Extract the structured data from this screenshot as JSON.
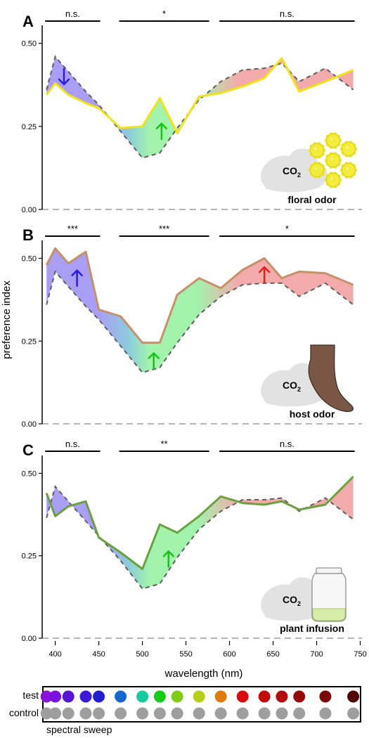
{
  "figure": {
    "x_axis_label": "wavelength (nm)",
    "y_axis_label": "preference index",
    "row_test_label": "test",
    "row_control_label": "control",
    "sweep_label": "spectral sweep",
    "co2_label": "CO",
    "co2_sub": "2"
  },
  "chart_data": [
    {
      "type": "line",
      "panel_letter": "A",
      "odor_label": "floral odor",
      "icon": "flower-cluster-icon",
      "x": [
        390,
        400,
        415,
        435,
        450,
        475,
        500,
        520,
        540,
        565,
        590,
        615,
        640,
        660,
        680,
        710,
        742
      ],
      "xlim": [
        385,
        752
      ],
      "ylim": [
        0,
        0.55
      ],
      "yticks": [
        0,
        0.25,
        0.5
      ],
      "ytick_labels": [
        "0.00",
        "0.25",
        "0.50"
      ],
      "xticks": [
        400,
        450,
        500,
        550,
        600,
        650,
        700,
        750
      ],
      "series": [
        {
          "role": "test",
          "color": "#f2e21b",
          "values": [
            0.345,
            0.38,
            0.345,
            0.32,
            0.305,
            0.245,
            0.25,
            0.335,
            0.23,
            0.34,
            0.35,
            0.37,
            0.395,
            0.455,
            0.355,
            0.385,
            0.42
          ]
        },
        {
          "role": "control",
          "style": "dashed",
          "color": "#5e5e5e",
          "values": [
            0.36,
            0.46,
            0.415,
            0.355,
            0.315,
            0.235,
            0.155,
            0.17,
            0.245,
            0.33,
            0.385,
            0.42,
            0.425,
            0.44,
            0.385,
            0.425,
            0.36
          ]
        }
      ],
      "significance": [
        {
          "range": [
            390,
            450
          ],
          "label": "n.s."
        },
        {
          "range": [
            475,
            575
          ],
          "label": "*"
        },
        {
          "range": [
            590,
            742
          ],
          "label": "n.s."
        }
      ],
      "arrows": [
        {
          "x": 410,
          "y": 0.4,
          "direction": "down",
          "color": "#2b1ed6"
        },
        {
          "x": 522,
          "y": 0.235,
          "direction": "up",
          "color": "#19c319"
        }
      ]
    },
    {
      "type": "line",
      "panel_letter": "B",
      "odor_label": "host odor",
      "icon": "foot-icon",
      "x": [
        390,
        400,
        415,
        435,
        450,
        475,
        500,
        520,
        540,
        565,
        590,
        615,
        640,
        660,
        680,
        710,
        742
      ],
      "xlim": [
        385,
        752
      ],
      "ylim": [
        0,
        0.55
      ],
      "yticks": [
        0,
        0.25,
        0.5
      ],
      "ytick_labels": [
        "0.00",
        "0.25",
        "0.50"
      ],
      "xticks": [
        400,
        450,
        500,
        550,
        600,
        650,
        700,
        750
      ],
      "series": [
        {
          "role": "test",
          "color": "#c4916b",
          "values": [
            0.48,
            0.53,
            0.485,
            0.52,
            0.345,
            0.325,
            0.245,
            0.245,
            0.39,
            0.44,
            0.41,
            0.465,
            0.5,
            0.44,
            0.46,
            0.455,
            0.42
          ]
        },
        {
          "role": "control",
          "style": "dashed",
          "color": "#5e5e5e",
          "values": [
            0.36,
            0.46,
            0.415,
            0.355,
            0.315,
            0.235,
            0.155,
            0.17,
            0.245,
            0.33,
            0.385,
            0.42,
            0.425,
            0.425,
            0.385,
            0.425,
            0.36
          ]
        }
      ],
      "significance": [
        {
          "range": [
            390,
            450
          ],
          "label": "***"
        },
        {
          "range": [
            475,
            575
          ],
          "label": "***"
        },
        {
          "range": [
            590,
            742
          ],
          "label": "*"
        }
      ],
      "arrows": [
        {
          "x": 425,
          "y": 0.44,
          "direction": "up",
          "color": "#2b1ed6"
        },
        {
          "x": 513,
          "y": 0.19,
          "direction": "up",
          "color": "#19c319"
        },
        {
          "x": 640,
          "y": 0.45,
          "direction": "up",
          "color": "#e11f1f"
        }
      ]
    },
    {
      "type": "line",
      "panel_letter": "C",
      "odor_label": "plant infusion",
      "icon": "jar-icon",
      "x": [
        390,
        400,
        415,
        435,
        450,
        475,
        500,
        520,
        540,
        565,
        590,
        615,
        640,
        660,
        680,
        710,
        742
      ],
      "xlim": [
        385,
        752
      ],
      "ylim": [
        0,
        0.55
      ],
      "yticks": [
        0,
        0.25,
        0.5
      ],
      "ytick_labels": [
        "0.00",
        "0.25",
        "0.50"
      ],
      "xticks": [
        400,
        450,
        500,
        550,
        600,
        650,
        700,
        750
      ],
      "series": [
        {
          "role": "test",
          "color": "#6aa040",
          "values": [
            0.44,
            0.37,
            0.4,
            0.415,
            0.305,
            0.26,
            0.21,
            0.345,
            0.32,
            0.37,
            0.43,
            0.41,
            0.405,
            0.415,
            0.39,
            0.405,
            0.49
          ]
        },
        {
          "role": "control",
          "style": "dashed",
          "color": "#5e5e5e",
          "values": [
            0.365,
            0.46,
            0.415,
            0.355,
            0.31,
            0.235,
            0.15,
            0.165,
            0.245,
            0.33,
            0.385,
            0.42,
            0.42,
            0.425,
            0.385,
            0.425,
            0.36
          ]
        }
      ],
      "significance": [
        {
          "range": [
            390,
            450
          ],
          "label": "n.s."
        },
        {
          "range": [
            475,
            575
          ],
          "label": "**"
        },
        {
          "range": [
            590,
            742
          ],
          "label": "n.s."
        }
      ],
      "arrows": [
        {
          "x": 530,
          "y": 0.24,
          "direction": "up",
          "color": "#19c319"
        }
      ]
    }
  ],
  "sweep": {
    "test_colors": [
      "#8a12d6",
      "#7a12e0",
      "#5914d4",
      "#3d18d8",
      "#2020cf",
      "#1565d2",
      "#16cc9e",
      "#12cc16",
      "#7fcc12",
      "#b5cf14",
      "#dd7a10",
      "#d80c0c",
      "#c20a0a",
      "#b40a0a",
      "#960808",
      "#7b0707",
      "#520303"
    ],
    "control_color": "#9e9e9e"
  }
}
